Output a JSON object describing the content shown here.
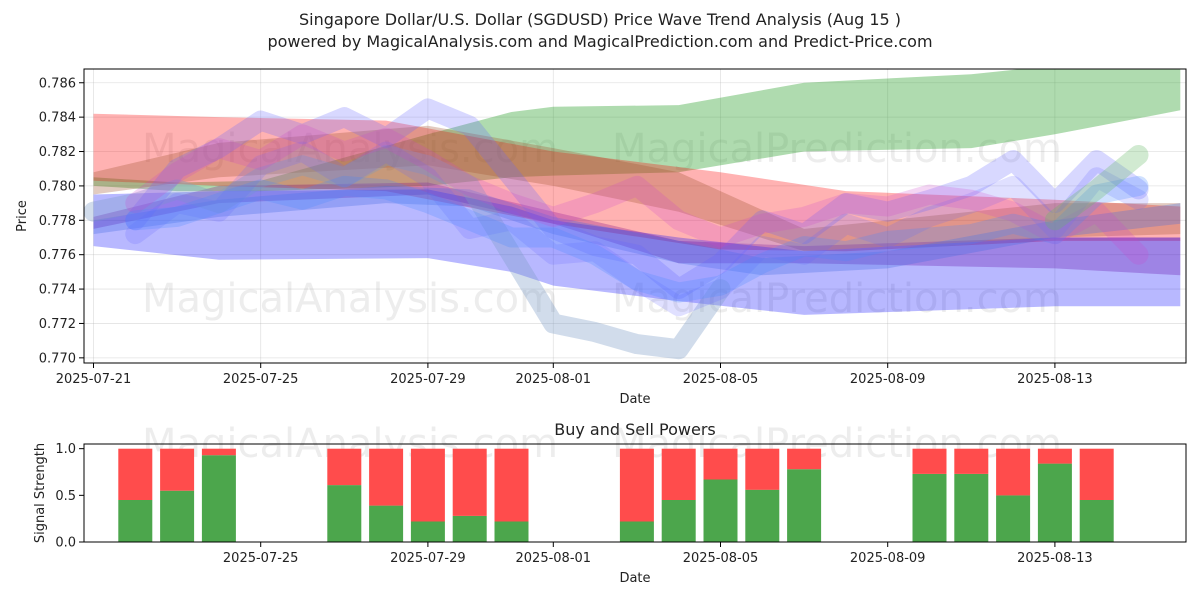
{
  "title_line1": "Singapore Dollar/U.S. Dollar (SGDUSD) Price Wave Trend Analysis (Aug 15 )",
  "title_line2": "powered by MagicalAnalysis.com and MagicalPrediction.com and Predict-Price.com",
  "watermarks": [
    "MagicalAnalysis.com",
    "MagicalPrediction.com"
  ],
  "chart_data": [
    {
      "type": "area",
      "name": "price-wave-chart",
      "xlabel": "Date",
      "ylabel": "Price",
      "x_ticks": [
        "2025-07-21",
        "2025-07-25",
        "2025-07-29",
        "2025-08-01",
        "2025-08-05",
        "2025-08-09",
        "2025-08-13"
      ],
      "y_ticks": [
        "0.770",
        "0.772",
        "0.774",
        "0.776",
        "0.778",
        "0.780",
        "0.782",
        "0.784",
        "0.786"
      ],
      "xlim": [
        "2025-07-21",
        "2025-08-16"
      ],
      "ylim": [
        0.7697,
        0.7868
      ],
      "grid": true,
      "bands": [
        {
          "color": "#2ca02c",
          "opacity": 0.38,
          "x": [
            "2025-07-21",
            "2025-07-23",
            "2025-07-25",
            "2025-07-29",
            "2025-07-31",
            "2025-08-01",
            "2025-08-04",
            "2025-08-07",
            "2025-08-11",
            "2025-08-13",
            "2025-08-16"
          ],
          "upper": [
            0.7805,
            0.7802,
            0.7803,
            0.783,
            0.7843,
            0.7846,
            0.7847,
            0.786,
            0.7865,
            0.787,
            0.787
          ],
          "lower": [
            0.78,
            0.7797,
            0.7797,
            0.78,
            0.7805,
            0.7806,
            0.7808,
            0.782,
            0.7822,
            0.783,
            0.7844
          ]
        },
        {
          "color": "#ff0000",
          "opacity": 0.3,
          "x": [
            "2025-07-21",
            "2025-07-24",
            "2025-07-28",
            "2025-08-01",
            "2025-08-05",
            "2025-08-08",
            "2025-08-13",
            "2025-08-16"
          ],
          "upper": [
            0.7842,
            0.784,
            0.7838,
            0.782,
            0.7808,
            0.7797,
            0.7792,
            0.7788
          ],
          "lower": [
            0.7803,
            0.78,
            0.7797,
            0.7778,
            0.7763,
            0.7762,
            0.7768,
            0.7768
          ]
        },
        {
          "color": "#a0522d",
          "opacity": 0.3,
          "x": [
            "2025-07-21",
            "2025-07-24",
            "2025-07-29",
            "2025-08-01",
            "2025-08-04",
            "2025-08-07",
            "2025-08-13",
            "2025-08-16"
          ],
          "upper": [
            0.7808,
            0.7825,
            0.7835,
            0.7822,
            0.7808,
            0.7775,
            0.779,
            0.779
          ],
          "lower": [
            0.7795,
            0.7805,
            0.7812,
            0.78,
            0.7785,
            0.7762,
            0.777,
            0.7772
          ]
        },
        {
          "color": "#800080",
          "opacity": 0.28,
          "x": [
            "2025-07-21",
            "2025-07-24",
            "2025-07-29",
            "2025-08-01",
            "2025-08-04",
            "2025-08-07",
            "2025-08-13",
            "2025-08-16"
          ],
          "upper": [
            0.7782,
            0.78,
            0.7802,
            0.7785,
            0.7768,
            0.7765,
            0.777,
            0.777
          ],
          "lower": [
            0.7775,
            0.779,
            0.7795,
            0.7778,
            0.7755,
            0.7755,
            0.7752,
            0.7748
          ]
        },
        {
          "color": "#0000ff",
          "opacity": 0.28,
          "x": [
            "2025-07-21",
            "2025-07-24",
            "2025-07-29",
            "2025-07-31",
            "2025-08-01",
            "2025-08-04",
            "2025-08-07",
            "2025-08-13",
            "2025-08-16"
          ],
          "upper": [
            0.7795,
            0.7797,
            0.7798,
            0.7788,
            0.778,
            0.777,
            0.7762,
            0.777,
            0.777
          ],
          "lower": [
            0.7765,
            0.7757,
            0.7758,
            0.775,
            0.7742,
            0.7733,
            0.7725,
            0.773,
            0.773
          ]
        },
        {
          "color": "#4169e1",
          "opacity": 0.3,
          "x": [
            "2025-07-21",
            "2025-07-24",
            "2025-07-28",
            "2025-07-30",
            "2025-08-01",
            "2025-08-04",
            "2025-08-06",
            "2025-08-09",
            "2025-08-13",
            "2025-08-16"
          ],
          "upper": [
            0.778,
            0.7792,
            0.78,
            0.7798,
            0.7782,
            0.7768,
            0.7758,
            0.7762,
            0.778,
            0.779
          ],
          "lower": [
            0.7772,
            0.7782,
            0.779,
            0.7788,
            0.7772,
            0.7755,
            0.7748,
            0.7752,
            0.777,
            0.7778
          ]
        }
      ],
      "waves": [
        {
          "color": "#7a9cc6",
          "opacity": 0.35,
          "x": [
            "2025-07-21",
            "2025-07-22",
            "2025-07-23",
            "2025-07-24",
            "2025-07-25",
            "2025-07-26",
            "2025-07-27",
            "2025-07-28",
            "2025-07-29",
            "2025-07-30",
            "2025-07-31",
            "2025-08-01",
            "2025-08-02",
            "2025-08-03",
            "2025-08-04",
            "2025-08-05"
          ],
          "y": [
            0.7785,
            0.779,
            0.7798,
            0.779,
            0.7805,
            0.7812,
            0.7805,
            0.7818,
            0.7812,
            0.78,
            0.776,
            0.772,
            0.7715,
            0.7708,
            0.7705,
            0.774
          ]
        },
        {
          "color": "#6464ff",
          "opacity": 0.25,
          "x": [
            "2025-07-22",
            "2025-07-23",
            "2025-07-24",
            "2025-07-25",
            "2025-07-26",
            "2025-07-27",
            "2025-07-28",
            "2025-07-29",
            "2025-07-30",
            "2025-07-31",
            "2025-08-01",
            "2025-08-02",
            "2025-08-03",
            "2025-08-04",
            "2025-08-05",
            "2025-08-06",
            "2025-08-07",
            "2025-08-08",
            "2025-08-09",
            "2025-08-10",
            "2025-08-11",
            "2025-08-12",
            "2025-08-13",
            "2025-08-14",
            "2025-08-15"
          ],
          "y": [
            0.778,
            0.781,
            0.7822,
            0.7838,
            0.783,
            0.784,
            0.7828,
            0.7845,
            0.7835,
            0.7805,
            0.7775,
            0.7765,
            0.776,
            0.774,
            0.7755,
            0.778,
            0.7772,
            0.779,
            0.7785,
            0.7792,
            0.78,
            0.7815,
            0.779,
            0.7815,
            0.7798
          ]
        },
        {
          "color": "#6464ff",
          "opacity": 0.2,
          "x": [
            "2025-07-22",
            "2025-07-23",
            "2025-07-24",
            "2025-07-25",
            "2025-07-26",
            "2025-07-27",
            "2025-07-28",
            "2025-07-29",
            "2025-07-30",
            "2025-07-31",
            "2025-08-01",
            "2025-08-02",
            "2025-08-03",
            "2025-08-04",
            "2025-08-05",
            "2025-08-06",
            "2025-08-07",
            "2025-08-08",
            "2025-08-09",
            "2025-08-10",
            "2025-08-11",
            "2025-08-12",
            "2025-08-13",
            "2025-08-14",
            "2025-08-15"
          ],
          "y": [
            0.7772,
            0.779,
            0.7785,
            0.7812,
            0.782,
            0.7805,
            0.782,
            0.7805,
            0.7775,
            0.778,
            0.776,
            0.7762,
            0.7745,
            0.773,
            0.774,
            0.7765,
            0.776,
            0.7778,
            0.777,
            0.7782,
            0.779,
            0.78,
            0.7775,
            0.7805,
            0.7792
          ]
        },
        {
          "color": "#cc44cc",
          "opacity": 0.22,
          "x": [
            "2025-07-22",
            "2025-07-23",
            "2025-07-24",
            "2025-07-25",
            "2025-07-26",
            "2025-07-27",
            "2025-07-28",
            "2025-07-29",
            "2025-07-30",
            "2025-07-31",
            "2025-08-01",
            "2025-08-02",
            "2025-08-03",
            "2025-08-04",
            "2025-08-05",
            "2025-08-06",
            "2025-08-07",
            "2025-08-08",
            "2025-08-09",
            "2025-08-10",
            "2025-08-11",
            "2025-08-12",
            "2025-08-13",
            "2025-08-14",
            "2025-08-15"
          ],
          "y": [
            0.779,
            0.7808,
            0.7822,
            0.7815,
            0.783,
            0.782,
            0.7828,
            0.7815,
            0.78,
            0.779,
            0.7782,
            0.779,
            0.78,
            0.778,
            0.777,
            0.7778,
            0.7782,
            0.779,
            0.7788,
            0.7795,
            0.7792,
            0.7785,
            0.7772,
            0.7785,
            0.776
          ]
        },
        {
          "color": "#4488ff",
          "opacity": 0.25,
          "x": [
            "2025-07-22",
            "2025-07-23",
            "2025-07-24",
            "2025-07-25",
            "2025-07-26",
            "2025-07-27",
            "2025-07-28",
            "2025-07-29",
            "2025-07-30",
            "2025-07-31",
            "2025-08-01",
            "2025-08-02",
            "2025-08-03",
            "2025-08-04",
            "2025-08-05",
            "2025-08-06",
            "2025-08-07",
            "2025-08-08",
            "2025-08-09",
            "2025-08-10",
            "2025-08-11",
            "2025-08-12",
            "2025-08-13",
            "2025-08-14",
            "2025-08-15"
          ],
          "y": [
            0.778,
            0.7782,
            0.779,
            0.7798,
            0.7792,
            0.78,
            0.7798,
            0.779,
            0.778,
            0.777,
            0.777,
            0.776,
            0.7745,
            0.7738,
            0.7742,
            0.7755,
            0.7765,
            0.7762,
            0.7768,
            0.777,
            0.7772,
            0.7778,
            0.7772,
            0.7795,
            0.78
          ]
        },
        {
          "color": "#66bb66",
          "opacity": 0.3,
          "x": [
            "2025-08-13",
            "2025-08-14",
            "2025-08-15"
          ],
          "y": [
            0.778,
            0.7798,
            0.7818
          ]
        }
      ]
    },
    {
      "type": "bar",
      "name": "buy-sell-powers-chart",
      "title": "Buy and Sell Powers",
      "xlabel": "Date",
      "ylabel": "Signal Strength",
      "x_ticks": [
        "2025-07-25",
        "2025-07-29",
        "2025-08-01",
        "2025-08-05",
        "2025-08-09",
        "2025-08-13"
      ],
      "y_ticks": [
        "0.0",
        "0.5",
        "1.0"
      ],
      "ylim": [
        0,
        1.05
      ],
      "categories": [
        "2025-07-22",
        "2025-07-23",
        "2025-07-24",
        "2025-07-27",
        "2025-07-28",
        "2025-07-29",
        "2025-07-30",
        "2025-07-31",
        "2025-08-03",
        "2025-08-04",
        "2025-08-05",
        "2025-08-06",
        "2025-08-07",
        "2025-08-10",
        "2025-08-11",
        "2025-08-12",
        "2025-08-13",
        "2025-08-14"
      ],
      "series": [
        {
          "color": "#4ca64c",
          "values": [
            0.45,
            0.55,
            0.93,
            0.61,
            0.39,
            0.22,
            0.28,
            0.22,
            0.22,
            0.45,
            0.67,
            0.56,
            0.78,
            0.73,
            0.73,
            0.5,
            0.84,
            0.45
          ]
        },
        {
          "color": "#ff4c4c",
          "values": [
            0.55,
            0.45,
            0.07,
            0.39,
            0.61,
            0.78,
            0.72,
            0.78,
            0.78,
            0.55,
            0.33,
            0.44,
            0.22,
            0.27,
            0.27,
            0.5,
            0.16,
            0.55
          ]
        }
      ]
    }
  ]
}
